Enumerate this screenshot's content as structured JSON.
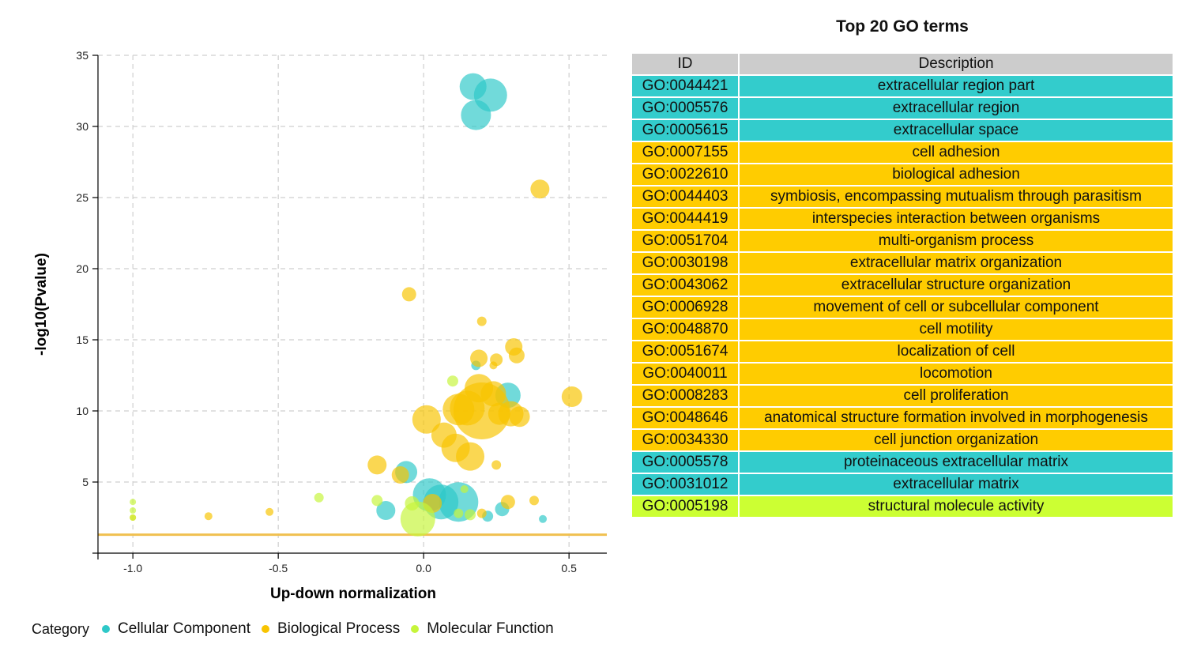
{
  "chart_data": {
    "type": "scatter",
    "xlabel": "Up-down normalization",
    "ylabel": "-log10(Pvalue)",
    "xlim": [
      -1.12,
      0.63
    ],
    "ylim": [
      0,
      35
    ],
    "xticks": [
      -1.0,
      -0.5,
      0.0,
      0.5
    ],
    "xtick_labels": [
      "-1.0",
      "-0.5",
      "0.0",
      "0.5"
    ],
    "yticks": [
      5,
      10,
      15,
      20,
      25,
      30,
      35
    ],
    "grid": true,
    "threshold_y": 1.3,
    "threshold_color": "#f0c050",
    "legend": {
      "title": "Category",
      "placement": "bottom-left",
      "items": [
        {
          "label": "Cellular Component",
          "color": "#2ec8c8"
        },
        {
          "label": "Biological Process",
          "color": "#f8c400"
        },
        {
          "label": "Molecular Function",
          "color": "#c6f53a"
        }
      ]
    },
    "series": [
      {
        "name": "Cellular Component",
        "color": "#2ec8c8",
        "points": [
          {
            "x": 0.17,
            "y": 32.8,
            "size": 17
          },
          {
            "x": 0.23,
            "y": 32.2,
            "size": 21
          },
          {
            "x": 0.18,
            "y": 30.8,
            "size": 19
          },
          {
            "x": 0.18,
            "y": 13.2,
            "size": 6
          },
          {
            "x": 0.29,
            "y": 11.1,
            "size": 16
          },
          {
            "x": -0.06,
            "y": 5.7,
            "size": 14
          },
          {
            "x": 0.02,
            "y": 4.1,
            "size": 21
          },
          {
            "x": 0.06,
            "y": 3.6,
            "size": 22
          },
          {
            "x": 0.12,
            "y": 3.6,
            "size": 25
          },
          {
            "x": -0.13,
            "y": 3.0,
            "size": 12
          },
          {
            "x": 0.27,
            "y": 3.1,
            "size": 9
          },
          {
            "x": 0.22,
            "y": 2.6,
            "size": 7
          },
          {
            "x": 0.41,
            "y": 2.4,
            "size": 5
          }
        ]
      },
      {
        "name": "Biological Process",
        "color": "#f8c400",
        "points": [
          {
            "x": 0.4,
            "y": 25.6,
            "size": 12
          },
          {
            "x": -0.05,
            "y": 18.2,
            "size": 9
          },
          {
            "x": 0.2,
            "y": 16.3,
            "size": 6
          },
          {
            "x": 0.31,
            "y": 14.5,
            "size": 11
          },
          {
            "x": 0.32,
            "y": 13.9,
            "size": 10
          },
          {
            "x": 0.19,
            "y": 13.7,
            "size": 11
          },
          {
            "x": 0.25,
            "y": 13.6,
            "size": 8
          },
          {
            "x": 0.24,
            "y": 13.2,
            "size": 5
          },
          {
            "x": 0.51,
            "y": 11.0,
            "size": 13
          },
          {
            "x": 0.19,
            "y": 11.6,
            "size": 18
          },
          {
            "x": 0.24,
            "y": 11.2,
            "size": 16
          },
          {
            "x": 0.2,
            "y": 10.0,
            "size": 36
          },
          {
            "x": 0.15,
            "y": 10.2,
            "size": 22
          },
          {
            "x": 0.12,
            "y": 10.1,
            "size": 20
          },
          {
            "x": 0.26,
            "y": 9.8,
            "size": 14
          },
          {
            "x": 0.3,
            "y": 9.8,
            "size": 16
          },
          {
            "x": 0.33,
            "y": 9.6,
            "size": 13
          },
          {
            "x": 0.01,
            "y": 9.4,
            "size": 18
          },
          {
            "x": 0.07,
            "y": 8.3,
            "size": 16
          },
          {
            "x": 0.11,
            "y": 7.4,
            "size": 18
          },
          {
            "x": 0.16,
            "y": 6.8,
            "size": 18
          },
          {
            "x": 0.25,
            "y": 6.2,
            "size": 6
          },
          {
            "x": -0.16,
            "y": 6.2,
            "size": 12
          },
          {
            "x": -0.08,
            "y": 5.5,
            "size": 11
          },
          {
            "x": 0.03,
            "y": 3.5,
            "size": 12
          },
          {
            "x": 0.29,
            "y": 3.6,
            "size": 9
          },
          {
            "x": 0.38,
            "y": 3.7,
            "size": 6
          },
          {
            "x": 0.2,
            "y": 2.8,
            "size": 6
          },
          {
            "x": -0.53,
            "y": 2.9,
            "size": 5
          },
          {
            "x": -0.74,
            "y": 2.6,
            "size": 5
          },
          {
            "x": -1.0,
            "y": 2.5,
            "size": 4
          }
        ]
      },
      {
        "name": "Molecular Function",
        "color": "#c6f53a",
        "points": [
          {
            "x": 0.1,
            "y": 12.1,
            "size": 7
          },
          {
            "x": 0.14,
            "y": 4.5,
            "size": 5
          },
          {
            "x": -0.36,
            "y": 3.9,
            "size": 6
          },
          {
            "x": -0.16,
            "y": 3.7,
            "size": 7
          },
          {
            "x": -0.04,
            "y": 3.5,
            "size": 9
          },
          {
            "x": 0.12,
            "y": 2.8,
            "size": 6
          },
          {
            "x": 0.16,
            "y": 2.7,
            "size": 7
          },
          {
            "x": -0.02,
            "y": 2.4,
            "size": 22
          },
          {
            "x": -1.0,
            "y": 3.6,
            "size": 4
          },
          {
            "x": -1.0,
            "y": 3.0,
            "size": 4
          },
          {
            "x": -1.0,
            "y": 2.5,
            "size": 4
          }
        ]
      }
    ]
  },
  "table": {
    "title": "Top 20 GO terms",
    "headers": {
      "id": "ID",
      "description": "Description"
    },
    "category_colors": {
      "CC": "#33cccc",
      "BP": "#ffcc00",
      "MF": "#ccff33"
    },
    "rows": [
      {
        "id": "GO:0044421",
        "description": "extracellular region part",
        "category": "CC"
      },
      {
        "id": "GO:0005576",
        "description": "extracellular region",
        "category": "CC"
      },
      {
        "id": "GO:0005615",
        "description": "extracellular space",
        "category": "CC"
      },
      {
        "id": "GO:0007155",
        "description": "cell adhesion",
        "category": "BP"
      },
      {
        "id": "GO:0022610",
        "description": "biological adhesion",
        "category": "BP"
      },
      {
        "id": "GO:0044403",
        "description": "symbiosis, encompassing mutualism through parasitism",
        "category": "BP"
      },
      {
        "id": "GO:0044419",
        "description": "interspecies interaction between organisms",
        "category": "BP"
      },
      {
        "id": "GO:0051704",
        "description": "multi-organism process",
        "category": "BP"
      },
      {
        "id": "GO:0030198",
        "description": "extracellular matrix organization",
        "category": "BP"
      },
      {
        "id": "GO:0043062",
        "description": "extracellular structure organization",
        "category": "BP"
      },
      {
        "id": "GO:0006928",
        "description": "movement of cell or subcellular component",
        "category": "BP"
      },
      {
        "id": "GO:0048870",
        "description": "cell motility",
        "category": "BP"
      },
      {
        "id": "GO:0051674",
        "description": "localization of cell",
        "category": "BP"
      },
      {
        "id": "GO:0040011",
        "description": "locomotion",
        "category": "BP"
      },
      {
        "id": "GO:0008283",
        "description": "cell proliferation",
        "category": "BP"
      },
      {
        "id": "GO:0048646",
        "description": "anatomical structure formation involved in morphogenesis",
        "category": "BP"
      },
      {
        "id": "GO:0034330",
        "description": "cell junction organization",
        "category": "BP"
      },
      {
        "id": "GO:0005578",
        "description": "proteinaceous extracellular matrix",
        "category": "CC"
      },
      {
        "id": "GO:0031012",
        "description": "extracellular matrix",
        "category": "CC"
      },
      {
        "id": "GO:0005198",
        "description": "structural molecule activity",
        "category": "MF"
      }
    ]
  }
}
